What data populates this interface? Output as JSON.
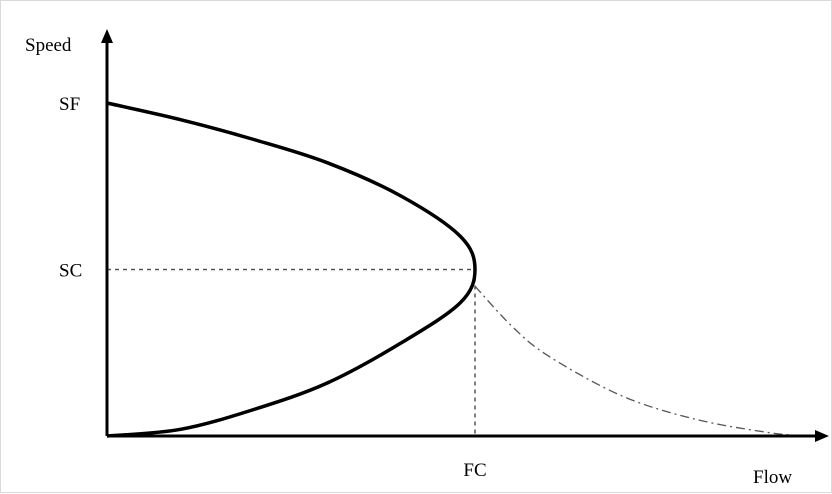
{
  "chart_data": {
    "type": "line",
    "title": "",
    "xlabel": "Flow",
    "ylabel": "Speed",
    "xlim": [
      0,
      1
    ],
    "ylim": [
      0,
      1
    ],
    "grid": false,
    "x_ticks": [
      {
        "label": "FC",
        "value": 0.5
      }
    ],
    "y_ticks": [
      {
        "label": "SF",
        "value": 1.0
      },
      {
        "label": "SC",
        "value": 0.5
      }
    ],
    "series": [
      {
        "style": "solid-bold",
        "x": [
          0.0,
          0.1,
          0.2,
          0.3,
          0.4,
          0.48,
          0.5,
          0.48,
          0.4,
          0.3,
          0.2,
          0.1,
          0.0
        ],
        "y": [
          1.0,
          0.95,
          0.89,
          0.82,
          0.72,
          0.6,
          0.5,
          0.4,
          0.28,
          0.16,
          0.08,
          0.02,
          0.0
        ]
      },
      {
        "style": "dash-dot",
        "x": [
          0.5,
          0.55,
          0.6,
          0.7,
          0.8,
          0.9,
          0.95
        ],
        "y": [
          0.45,
          0.33,
          0.24,
          0.12,
          0.05,
          0.01,
          0.0
        ]
      }
    ],
    "reference_lines": [
      {
        "from": [
          0,
          0.5
        ],
        "to": [
          0.5,
          0.5
        ]
      },
      {
        "from": [
          0.5,
          0.5
        ],
        "to": [
          0.5,
          0
        ]
      }
    ],
    "colors": {
      "line": "#000000",
      "dashed": "#555555"
    }
  }
}
